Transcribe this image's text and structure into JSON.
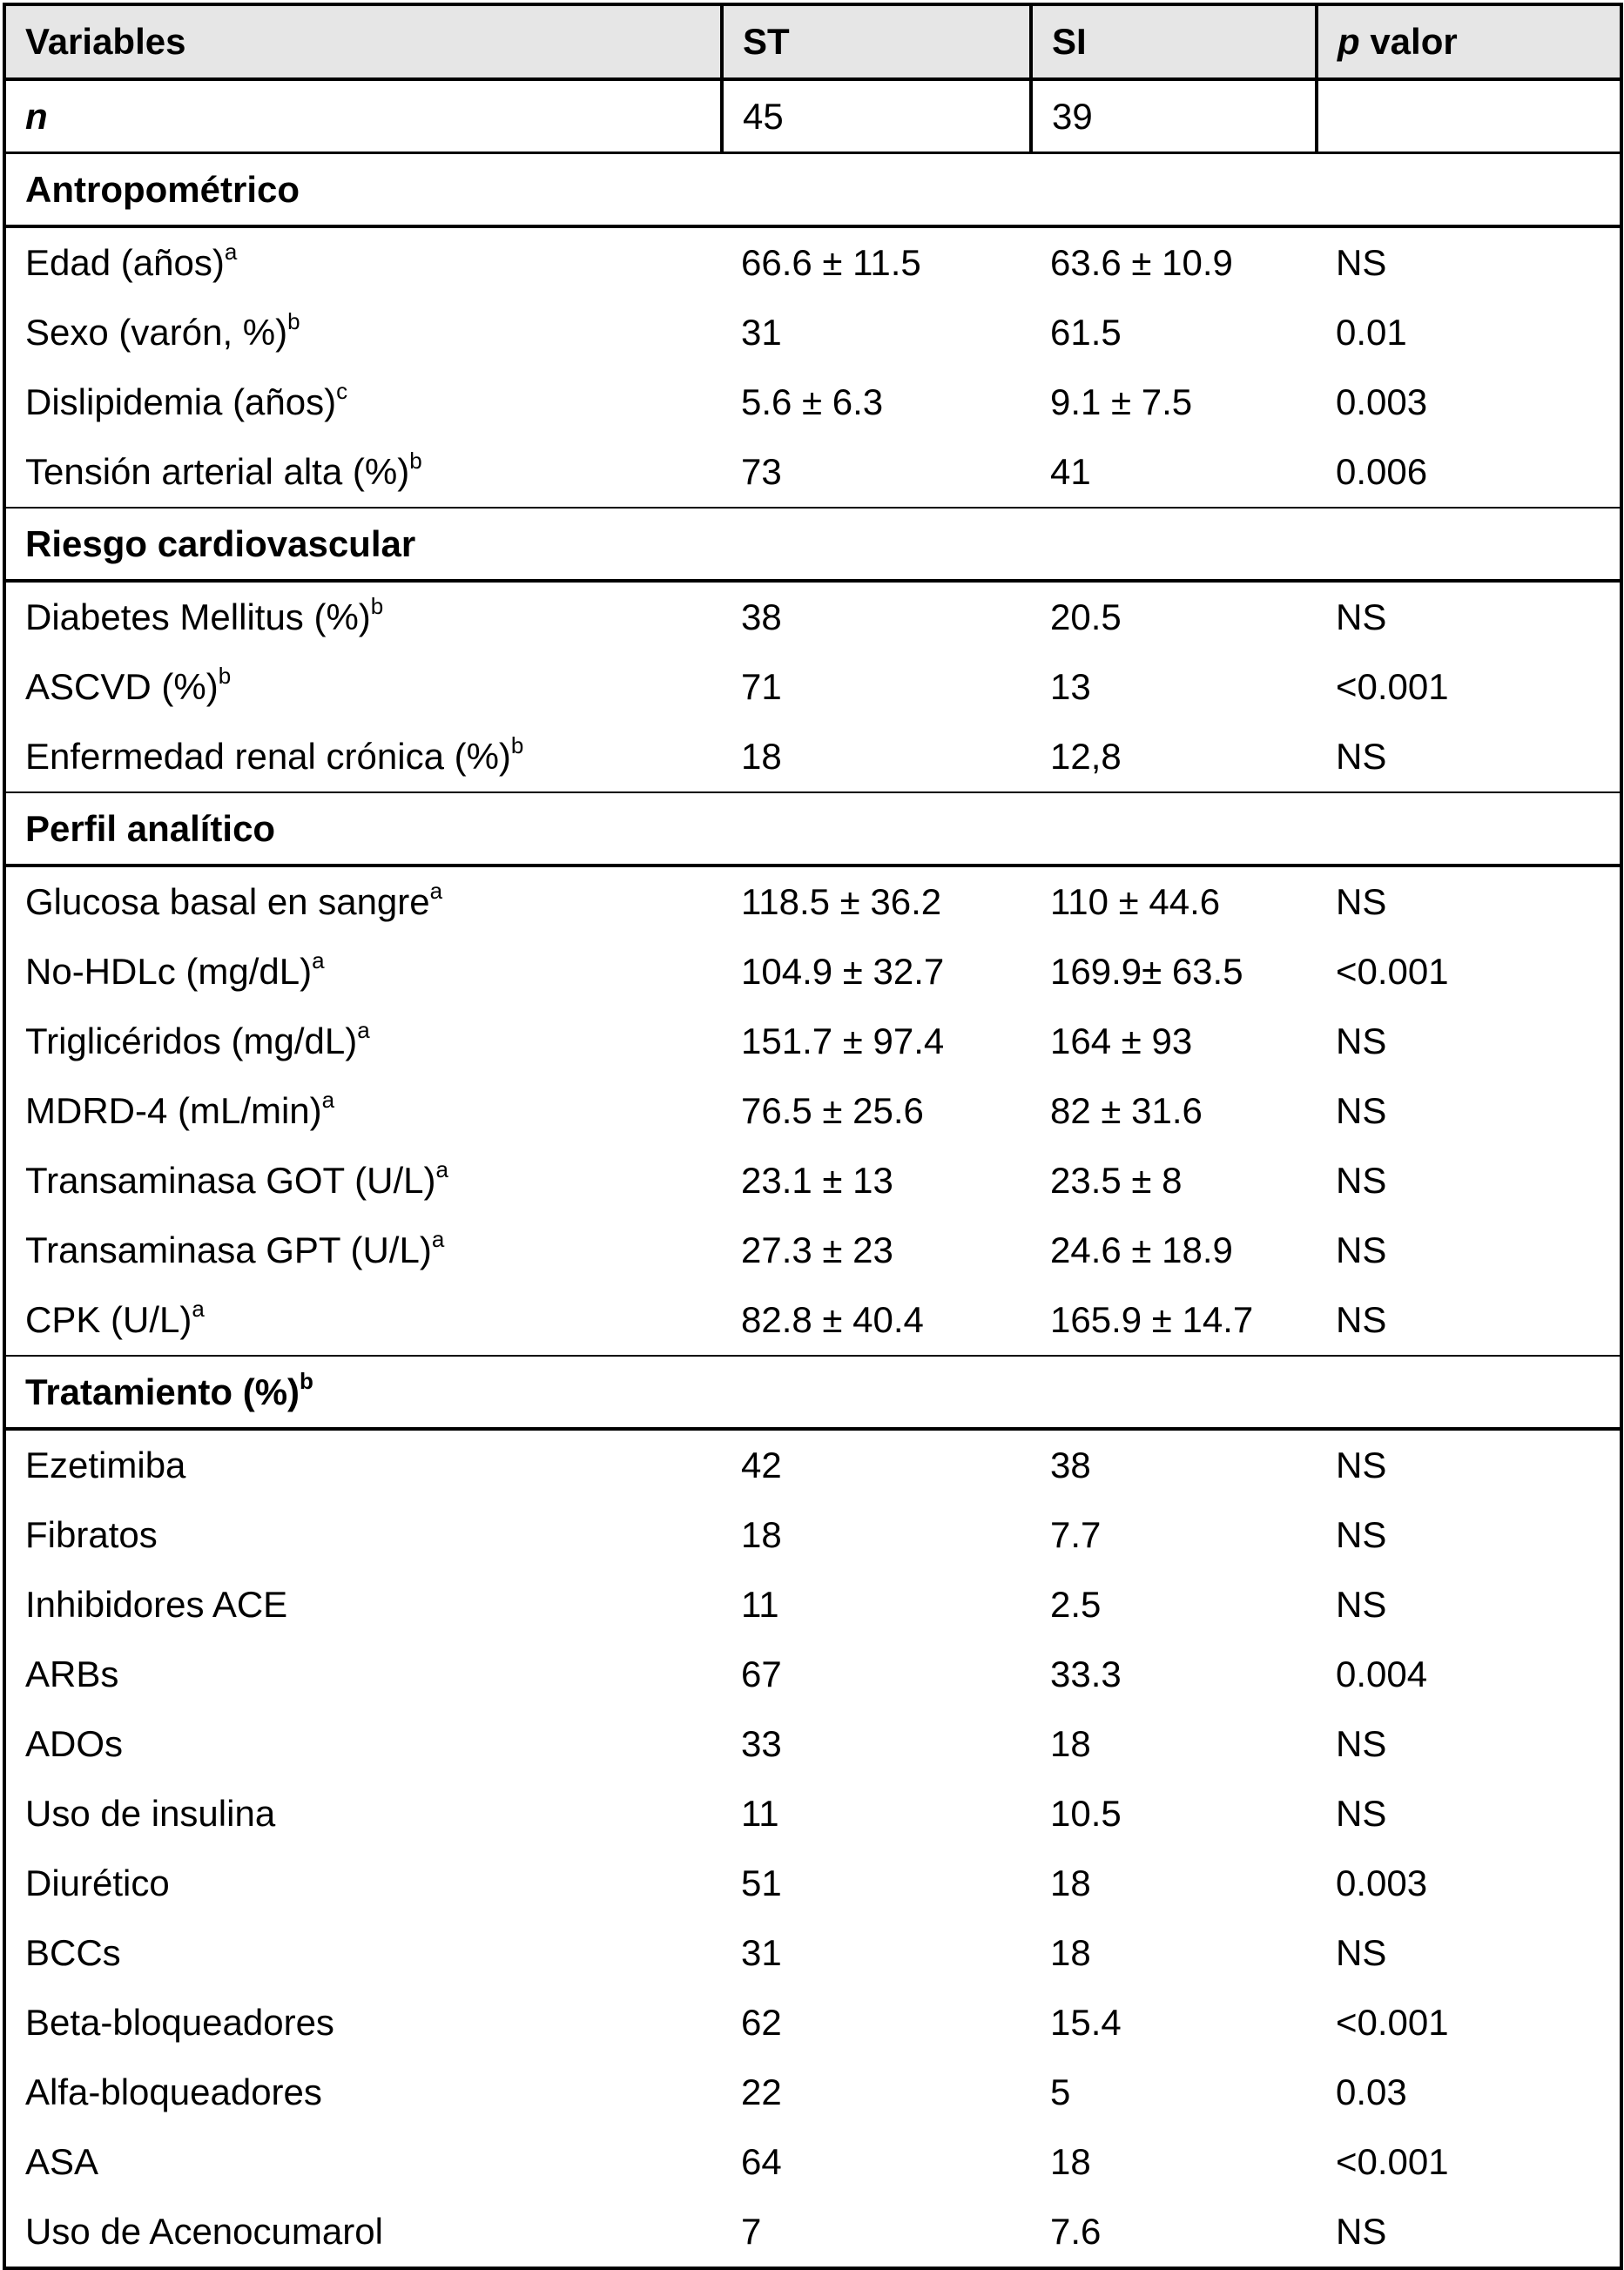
{
  "table": {
    "headers": {
      "variables": "Variables",
      "st": "ST",
      "si": "SI",
      "p_italic": "p",
      "p_rest": " valor"
    },
    "n_row": {
      "label": "n",
      "st": "45",
      "si": "39",
      "p": ""
    },
    "sections": [
      {
        "title": "Antropométrico",
        "title_sup": "",
        "rows": [
          {
            "label": "Edad (años)",
            "sup": "a",
            "st": "66.6 ± 11.5",
            "si": "63.6 ± 10.9",
            "p": "NS"
          },
          {
            "label": "Sexo (varón, %)",
            "sup": "b",
            "st": "31",
            "si": "61.5",
            "p": "0.01"
          },
          {
            "label": "Dislipidemia (años)",
            "sup": "c",
            "st": "5.6 ± 6.3",
            "si": "9.1 ± 7.5",
            "p": "0.003"
          },
          {
            "label": "Tensión arterial alta (%)",
            "sup": "b",
            "st": "73",
            "si": "41",
            "p": "0.006"
          }
        ]
      },
      {
        "title": "Riesgo cardiovascular",
        "title_sup": "",
        "rows": [
          {
            "label": "Diabetes Mellitus (%)",
            "sup": "b",
            "st": "38",
            "si": "20.5",
            "p": "NS"
          },
          {
            "label": "ASCVD (%)",
            "sup": "b",
            "st": "71",
            "si": "13",
            "p": "<0.001"
          },
          {
            "label": "Enfermedad renal crónica (%)",
            "sup": "b",
            "st": "18",
            "si": "12,8",
            "p": "NS"
          }
        ]
      },
      {
        "title": "Perfil analítico",
        "title_sup": "",
        "rows": [
          {
            "label": "Glucosa basal en sangre",
            "sup": "a",
            "st": "118.5 ± 36.2",
            "si": "110 ± 44.6",
            "p": "NS"
          },
          {
            "label": "No-HDLc (mg/dL)",
            "sup": "a",
            "st": "104.9 ± 32.7",
            "si": "169.9± 63.5",
            "p": "<0.001"
          },
          {
            "label": "Triglicéridos (mg/dL)",
            "sup": "a",
            "st": "151.7 ± 97.4",
            "si": "164 ± 93",
            "p": "NS"
          },
          {
            "label": "MDRD-4 (mL/min)",
            "sup": "a",
            "st": "76.5 ± 25.6",
            "si": "82 ± 31.6",
            "p": "NS"
          },
          {
            "label": "Transaminasa GOT (U/L)",
            "sup": "a",
            "st": "23.1 ± 13",
            "si": "23.5 ± 8",
            "p": "NS"
          },
          {
            "label": "Transaminasa GPT (U/L)",
            "sup": "a",
            "st": "27.3 ± 23",
            "si": "24.6 ± 18.9",
            "p": "NS"
          },
          {
            "label": "CPK (U/L)",
            "sup": "a",
            "st": "82.8 ± 40.4",
            "si": "165.9 ± 14.7",
            "p": "NS"
          }
        ]
      },
      {
        "title": "Tratamiento (%)",
        "title_sup": "b",
        "rows": [
          {
            "label": "Ezetimiba",
            "sup": "",
            "st": "42",
            "si": "38",
            "p": "NS"
          },
          {
            "label": "Fibratos",
            "sup": "",
            "st": "18",
            "si": "7.7",
            "p": "NS"
          },
          {
            "label": "Inhibidores ACE",
            "sup": "",
            "st": "11",
            "si": "2.5",
            "p": "NS"
          },
          {
            "label": "ARBs",
            "sup": "",
            "st": "67",
            "si": "33.3",
            "p": "0.004"
          },
          {
            "label": "ADOs",
            "sup": "",
            "st": "33",
            "si": "18",
            "p": "NS"
          },
          {
            "label": "Uso de insulina",
            "sup": "",
            "st": "11",
            "si": "10.5",
            "p": "NS"
          },
          {
            "label": "Diurético",
            "sup": "",
            "st": "51",
            "si": "18",
            "p": "0.003"
          },
          {
            "label": "BCCs",
            "sup": "",
            "st": "31",
            "si": "18",
            "p": "NS"
          },
          {
            "label": "Beta-bloqueadores",
            "sup": "",
            "st": "62",
            "si": "15.4",
            "p": "<0.001"
          },
          {
            "label": "Alfa-bloqueadores",
            "sup": "",
            "st": "22",
            "si": "5",
            "p": "0.03"
          },
          {
            "label": "ASA",
            "sup": "",
            "st": "64",
            "si": "18",
            "p": "<0.001"
          },
          {
            "label": "Uso de Acenocumarol",
            "sup": "",
            "st": "7",
            "si": "7.6",
            "p": "NS"
          }
        ]
      }
    ]
  }
}
